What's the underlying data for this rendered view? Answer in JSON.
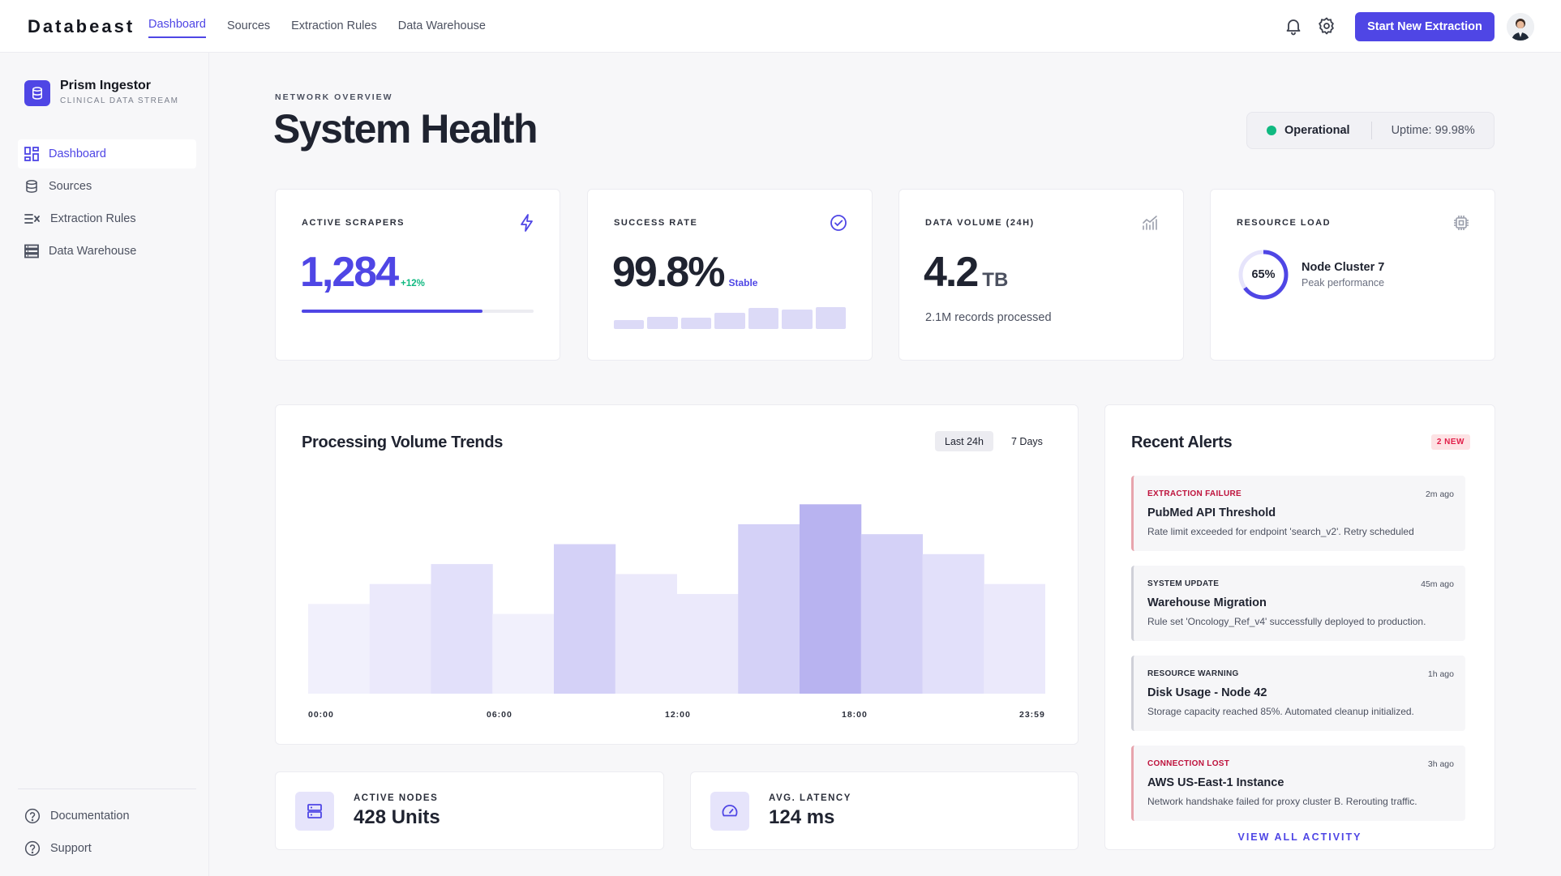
{
  "brand": "Databeast",
  "topnav": [
    {
      "label": "Dashboard",
      "active": true
    },
    {
      "label": "Sources",
      "active": false
    },
    {
      "label": "Extraction Rules",
      "active": false
    },
    {
      "label": "Data Warehouse",
      "active": false
    }
  ],
  "header": {
    "icons": [
      "bell-icon",
      "gear-icon"
    ],
    "cta_label": "Start New Extraction",
    "accent": "#4f46e5"
  },
  "sidebar": {
    "workspace_name": "Prism Ingestor",
    "workspace_sub": "CLINICAL DATA STREAM",
    "items": [
      {
        "label": "Dashboard",
        "icon": "dashboard-icon",
        "active": true
      },
      {
        "label": "Sources",
        "icon": "database-icon",
        "active": false
      },
      {
        "label": "Extraction Rules",
        "icon": "rules-icon",
        "active": false
      },
      {
        "label": "Data Warehouse",
        "icon": "warehouse-icon",
        "active": false
      }
    ],
    "footer": [
      {
        "label": "Documentation",
        "icon": "help-circle-icon"
      },
      {
        "label": "Support",
        "icon": "support-icon"
      }
    ]
  },
  "page": {
    "eyebrow": "NETWORK OVERVIEW",
    "title": "System Health",
    "status": "Operational",
    "uptime": "Uptime: 99.98%",
    "status_color": "#10b981"
  },
  "kpis": {
    "scrapers": {
      "label": "ACTIVE SCRAPERS",
      "value": "1,284",
      "trend": "+12%",
      "progress": 0.78
    },
    "success": {
      "label": "SUCCESS RATE",
      "value": "99.8%",
      "note": "Stable",
      "bars": [
        0.32,
        0.44,
        0.42,
        0.6,
        0.76,
        0.7,
        0.78
      ]
    },
    "volume": {
      "label": "DATA VOLUME (24H)",
      "value": "4.2",
      "unit": "TB",
      "records": "2.1M records processed"
    },
    "resource": {
      "label": "RESOURCE LOAD",
      "percent_label": "65%",
      "percent": 65,
      "node": "Node Cluster 7",
      "node_sub": "Peak performance"
    }
  },
  "trends": {
    "title": "Processing Volume Trends",
    "ranges": [
      {
        "label": "Last 24h",
        "active": true
      },
      {
        "label": "7 Days",
        "active": false
      }
    ],
    "x_ticks": [
      "00:00",
      "06:00",
      "12:00",
      "18:00",
      "23:59"
    ]
  },
  "chart_data": {
    "type": "bar",
    "title": "Processing Volume Trends",
    "xlabel": "",
    "ylabel": "",
    "x_ticks": [
      "00:00",
      "06:00",
      "12:00",
      "18:00",
      "23:59"
    ],
    "values": [
      45,
      55,
      65,
      40,
      75,
      60,
      50,
      85,
      95,
      80,
      70,
      55
    ],
    "ylim": [
      0,
      100
    ],
    "grid": false,
    "legend": "none"
  },
  "stats": {
    "nodes": {
      "label": "ACTIVE NODES",
      "value": "428 Units"
    },
    "latency": {
      "label": "AVG. LATENCY",
      "value": "124 ms"
    }
  },
  "alerts": {
    "title": "Recent Alerts",
    "badge": "2 NEW",
    "items": [
      {
        "type": "EXTRACTION FAILURE",
        "time": "2m ago",
        "title": "PubMed API Threshold",
        "desc": "Rate limit exceeded for endpoint 'search_v2'. Retry scheduled",
        "severity": "error"
      },
      {
        "type": "SYSTEM UPDATE",
        "time": "45m ago",
        "title": "Warehouse Migration",
        "desc": "Rule set 'Oncology_Ref_v4' successfully deployed to production.",
        "severity": "info"
      },
      {
        "type": "RESOURCE WARNING",
        "time": "1h ago",
        "title": "Disk Usage - Node 42",
        "desc": "Storage capacity reached 85%. Automated cleanup initialized.",
        "severity": "info"
      },
      {
        "type": "CONNECTION LOST",
        "time": "3h ago",
        "title": "AWS US-East-1 Instance",
        "desc": "Network handshake failed for proxy cluster B. Rerouting traffic.",
        "severity": "error"
      }
    ],
    "view_all": "VIEW ALL ACTIVITY"
  }
}
